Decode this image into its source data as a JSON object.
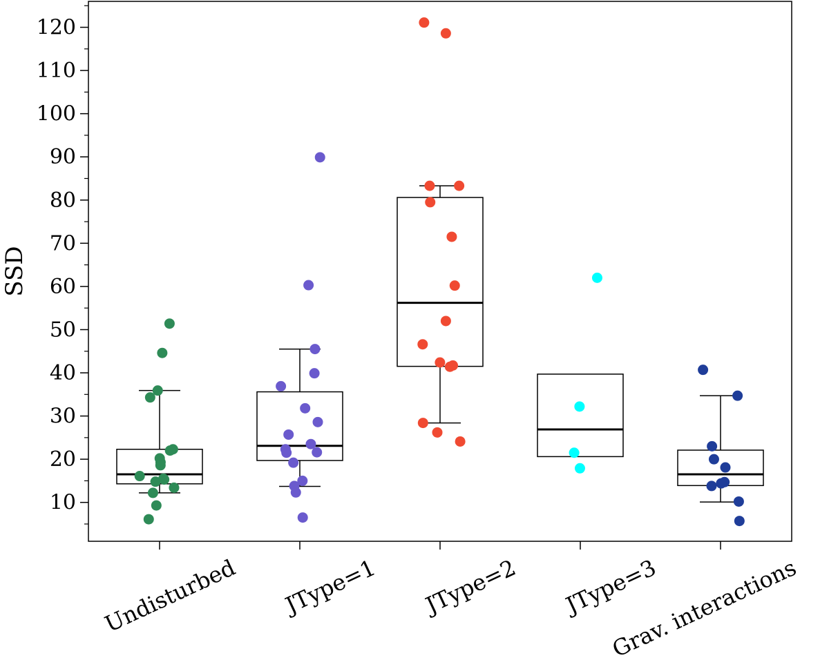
{
  "chart_data": {
    "type": "box",
    "ylabel": "SSD",
    "xlabel": "",
    "ylim": [
      1,
      126
    ],
    "yticks": [
      10,
      20,
      30,
      40,
      50,
      60,
      70,
      80,
      90,
      100,
      110,
      120
    ],
    "ytick_labels": [
      "10",
      "20",
      "30",
      "40",
      "50",
      "60",
      "70",
      "80",
      "90",
      "100",
      "110",
      "120"
    ],
    "grid": false,
    "categories": [
      "Undisturbed",
      "JType=1",
      "JType=2",
      "JType=3",
      "Grav. interactions"
    ],
    "series": [
      {
        "category": "Undisturbed",
        "color": "#2e8b57",
        "box": {
          "q1": 14.3,
          "median": 16.5,
          "q3": 22.3,
          "whisker_low": 12.2,
          "whisker_high": 35.9
        },
        "points": [
          51.4,
          44.6,
          35.9,
          34.3,
          22.3,
          22.0,
          20.2,
          19.3,
          18.6,
          16.1,
          15.5,
          15.3,
          14.8,
          13.4,
          12.2,
          9.3,
          6.1
        ]
      },
      {
        "category": "JType=1",
        "color": "#6a5acd",
        "box": {
          "q1": 19.7,
          "median": 23.1,
          "q3": 35.6,
          "whisker_low": 13.7,
          "whisker_high": 45.5
        },
        "points": [
          89.9,
          60.3,
          45.5,
          39.9,
          36.9,
          31.8,
          28.6,
          25.7,
          23.5,
          22.3,
          21.6,
          21.5,
          19.2,
          15.0,
          13.8,
          12.3,
          6.5
        ]
      },
      {
        "category": "JType=2",
        "color": "#f04a32",
        "box": {
          "q1": 41.5,
          "median": 56.2,
          "q3": 80.6,
          "whisker_low": 28.4,
          "whisker_high": 83.3
        },
        "points": [
          121.1,
          118.6,
          83.3,
          83.3,
          79.5,
          71.5,
          60.2,
          52.0,
          46.6,
          42.4,
          41.7,
          41.4,
          28.4,
          26.2,
          24.1
        ]
      },
      {
        "category": "JType=3",
        "color": "#00ffff",
        "box": {
          "q1": 20.6,
          "median": 26.9,
          "q3": 39.7,
          "whisker_low": 20.6,
          "whisker_high": 39.7
        },
        "points": [
          62.0,
          32.2,
          21.5,
          17.9
        ]
      },
      {
        "category": "Grav. interactions",
        "color": "#1f3d99",
        "box": {
          "q1": 13.9,
          "median": 16.5,
          "q3": 22.1,
          "whisker_low": 10.1,
          "whisker_high": 34.7
        },
        "points": [
          40.7,
          34.7,
          23.0,
          20.0,
          18.1,
          14.7,
          14.4,
          13.8,
          10.2,
          5.7
        ]
      }
    ]
  }
}
